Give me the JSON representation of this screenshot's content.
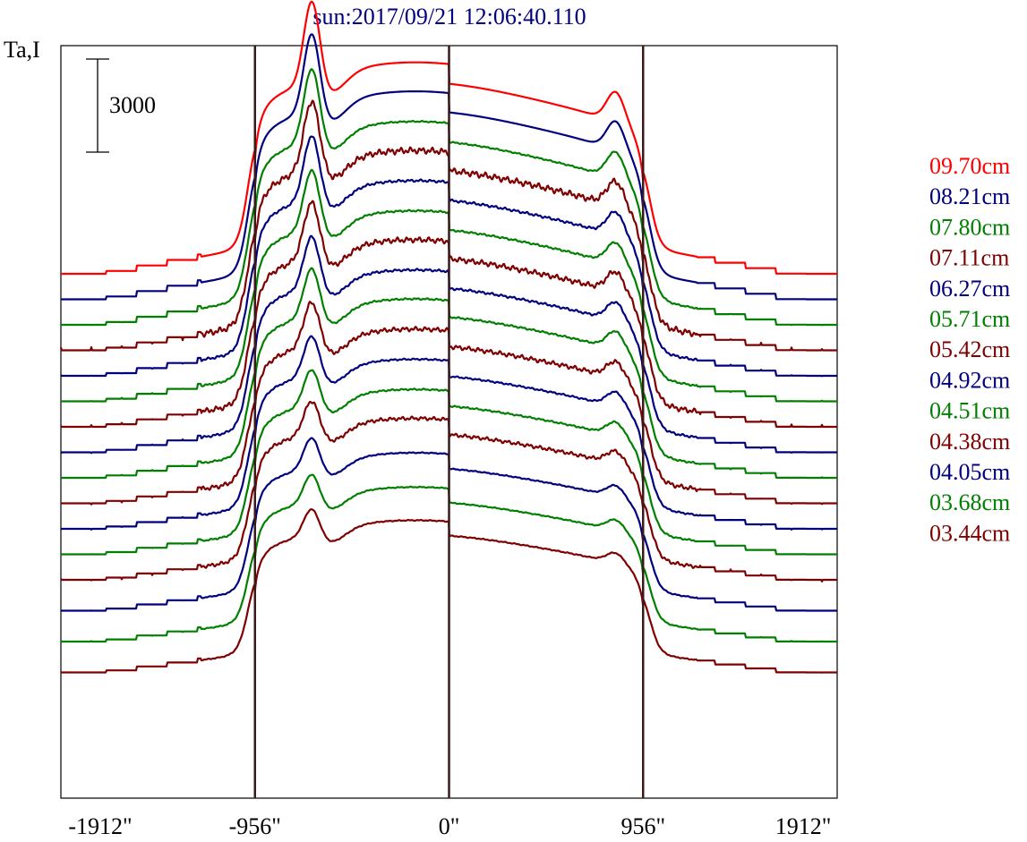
{
  "chart_data": {
    "type": "line",
    "title": "sun:2017/09/21 12:06:40.110",
    "ylabel": "Ta,I",
    "scale_bar_label": "3000",
    "scale_bar_value": 3000,
    "x_tick_labels": [
      "-1912\"",
      "-956\"",
      "0\"",
      "956\"",
      "1912\""
    ],
    "x_ticks": [
      -1912,
      -956,
      0,
      956,
      1912
    ],
    "xlim": [
      -1912,
      1912
    ],
    "vertical_lines_at": [
      -956,
      0,
      956
    ],
    "colors": {
      "red": "#ff0000",
      "blue": "#00007f",
      "green": "#007f00",
      "maroon": "#7f0000",
      "guide_lines": "#3a1a1a"
    },
    "series": [
      {
        "name": "09.70cm",
        "color": "#ff0000",
        "amplitude": 1.0,
        "noise": 0.0
      },
      {
        "name": "08.21cm",
        "color": "#00007f",
        "amplitude": 0.97,
        "noise": 0.0
      },
      {
        "name": "07.80cm",
        "color": "#007f00",
        "amplitude": 0.93,
        "noise": 0.2
      },
      {
        "name": "07.11cm",
        "color": "#7f0000",
        "amplitude": 0.9,
        "noise": 1.0
      },
      {
        "name": "06.27cm",
        "color": "#00007f",
        "amplitude": 0.86,
        "noise": 0.4
      },
      {
        "name": "05.71cm",
        "color": "#007f00",
        "amplitude": 0.82,
        "noise": 0.3
      },
      {
        "name": "05.42cm",
        "color": "#7f0000",
        "amplitude": 0.79,
        "noise": 0.9
      },
      {
        "name": "04.92cm",
        "color": "#00007f",
        "amplitude": 0.75,
        "noise": 0.4
      },
      {
        "name": "04.51cm",
        "color": "#007f00",
        "amplitude": 0.72,
        "noise": 0.3
      },
      {
        "name": "04.38cm",
        "color": "#7f0000",
        "amplitude": 0.68,
        "noise": 0.8
      },
      {
        "name": "04.05cm",
        "color": "#00007f",
        "amplitude": 0.64,
        "noise": 0.3
      },
      {
        "name": "03.68cm",
        "color": "#007f00",
        "amplitude": 0.6,
        "noise": 0.3
      },
      {
        "name": "03.44cm",
        "color": "#7f0000",
        "amplitude": 0.57,
        "noise": 0.7
      },
      {
        "name": "",
        "color": "#00007f",
        "amplitude": 0.54,
        "noise": 0.2
      },
      {
        "name": "",
        "color": "#007f00",
        "amplitude": 0.51,
        "noise": 0.2
      },
      {
        "name": "",
        "color": "#7f0000",
        "amplitude": 0.49,
        "noise": 0.2
      }
    ]
  }
}
